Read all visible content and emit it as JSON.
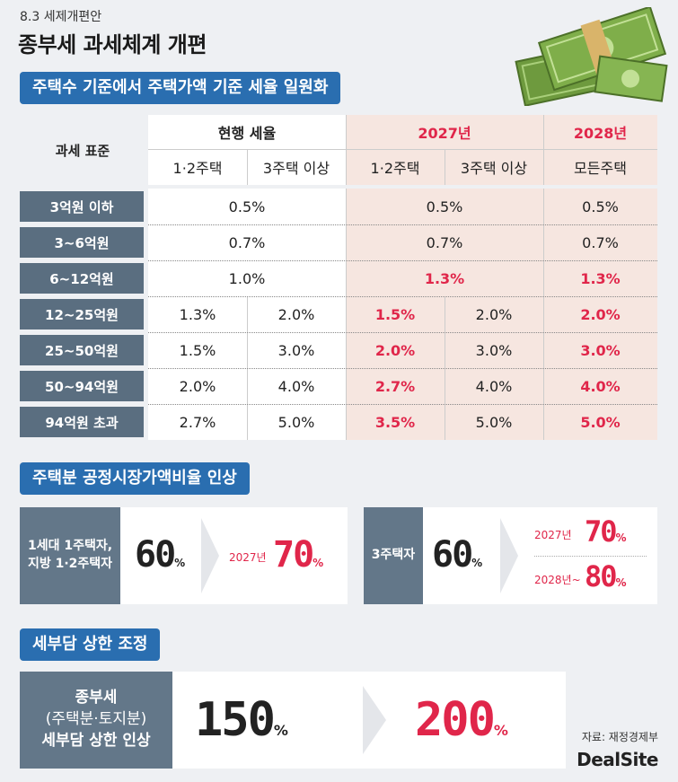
{
  "header": {
    "supertitle": "8.3 세제개편안",
    "title": "종부세 과세체계 개편"
  },
  "section1": {
    "pill": "주택수 기준에서 주택가액 기준 세율 일원화",
    "corner_header": "과세 표준",
    "groups": [
      "현행 세율",
      "2027년",
      "2028년"
    ],
    "subheaders": [
      "1·2주택",
      "3주택 이상",
      "1·2주택",
      "3주택 이상",
      "모든주택"
    ],
    "rows": [
      {
        "label": "3억원 이하",
        "cur": "0.5%",
        "y27": "0.5%",
        "y28": "0.5%"
      },
      {
        "label": "3~6억원",
        "cur": "0.7%",
        "y27": "0.7%",
        "y28": "0.7%"
      },
      {
        "label": "6~12억원",
        "cur": "1.0%",
        "y27": "1.3%",
        "y28": "1.3%"
      },
      {
        "label": "12~25억원",
        "c1": "1.3%",
        "c2": "2.0%",
        "n1": "1.5%",
        "n2": "2.0%",
        "y28": "2.0%"
      },
      {
        "label": "25~50억원",
        "c1": "1.5%",
        "c2": "3.0%",
        "n1": "2.0%",
        "n2": "3.0%",
        "y28": "3.0%"
      },
      {
        "label": "50~94억원",
        "c1": "2.0%",
        "c2": "4.0%",
        "n1": "2.7%",
        "n2": "4.0%",
        "y28": "4.0%"
      },
      {
        "label": "94억원 초과",
        "c1": "2.7%",
        "c2": "5.0%",
        "n1": "3.5%",
        "n2": "5.0%",
        "y28": "5.0%"
      }
    ]
  },
  "section2": {
    "pill": "주택분 공정시장가액비율 인상",
    "left": {
      "label_line1": "1세대 1주택자,",
      "label_line2": "지방 1·2주택자",
      "current": "60",
      "year": "2027년",
      "new": "70",
      "unit": "%"
    },
    "right": {
      "label": "3주택자",
      "current": "60",
      "year1": "2027년",
      "new1": "70",
      "year2": "2028년~",
      "new2": "80",
      "unit": "%"
    }
  },
  "section3": {
    "pill": "세부담 상한 조정",
    "label_line1": "종부세",
    "label_line2": "(주택분·토지분)",
    "label_line3": "세부담 상한 인상",
    "current": "150",
    "new": "200",
    "unit": "%"
  },
  "footer": {
    "source": "자료: 재정경제부",
    "logo": "DealSite"
  },
  "colors": {
    "accent_blue": "#2a6eb0",
    "row_label_bg": "#5a6e80",
    "highlight_red": "#e0264a",
    "pink_bg": "#f6e6e0"
  }
}
